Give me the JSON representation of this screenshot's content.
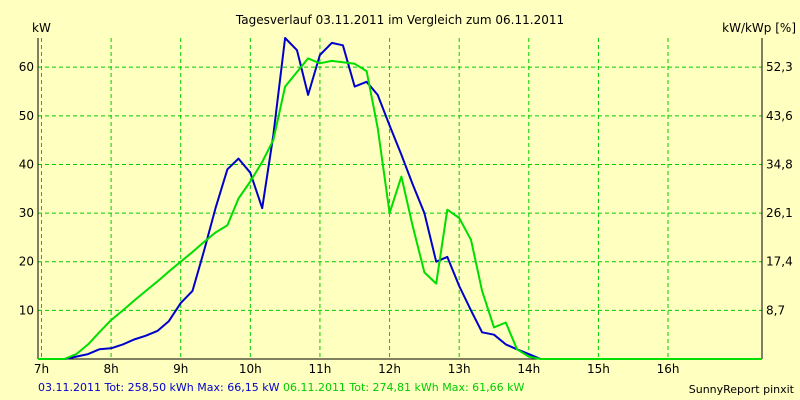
{
  "chart_data": {
    "type": "line",
    "title": "Tagesverlauf 03.11.2011 im Vergleich zum 06.11.2011",
    "ylabel_left": "kW",
    "ylabel_right": "kW/kWp [%]",
    "xlim": [
      6.95,
      17.35
    ],
    "ylim": [
      0,
      66
    ],
    "x_ticks": [
      7,
      8,
      9,
      10,
      11,
      12,
      13,
      14,
      15,
      16
    ],
    "x_tick_labels": [
      "7h",
      "8h",
      "9h",
      "10h",
      "11h",
      "12h",
      "13h",
      "14h",
      "15h",
      "16h"
    ],
    "y_ticks": [
      10,
      20,
      30,
      40,
      50,
      60
    ],
    "y_tick_labels": [
      "10",
      "20",
      "30",
      "40",
      "50",
      "60"
    ],
    "y2_ticks": [
      8.7,
      17.4,
      26.1,
      34.8,
      43.6,
      52.3
    ],
    "y2_tick_labels": [
      "8,7",
      "17,4",
      "26,1",
      "34,8",
      "43,6",
      "52,3"
    ],
    "grid": true,
    "series": [
      {
        "name": "03.11.2011",
        "color": "#0000cc",
        "x": [
          6.95,
          7.33,
          7.5,
          7.67,
          7.83,
          8.0,
          8.17,
          8.33,
          8.5,
          8.67,
          8.83,
          9.0,
          9.17,
          9.33,
          9.5,
          9.67,
          9.83,
          10.0,
          10.17,
          10.33,
          10.5,
          10.67,
          10.83,
          11.0,
          11.17,
          11.33,
          11.5,
          11.67,
          11.83,
          12.0,
          12.17,
          12.33,
          12.5,
          12.67,
          12.83,
          13.0,
          13.17,
          13.33,
          13.5,
          13.67,
          13.83,
          14.0,
          14.17,
          14.33,
          14.5,
          14.67,
          14.83,
          15.0,
          15.17,
          15.33,
          15.5,
          15.67,
          15.83,
          16.0,
          16.17,
          16.33,
          16.5,
          16.67,
          17.35
        ],
        "y": [
          0,
          0,
          0.5,
          1,
          2,
          2.2,
          3,
          4,
          4.8,
          5.8,
          7.8,
          11.5,
          14,
          22,
          31,
          39,
          41.2,
          38.3,
          31,
          46,
          66,
          63.5,
          54.3,
          62.5,
          65,
          64.5,
          56,
          57,
          54.3,
          48,
          42,
          36,
          30,
          20,
          21,
          15,
          10,
          5.5,
          5,
          3,
          2,
          1,
          0,
          0,
          0,
          0,
          0,
          0,
          0,
          0,
          0,
          0,
          0,
          0,
          0,
          0,
          0,
          0,
          0
        ]
      },
      {
        "name": "06.11.2011",
        "color": "#00dd00",
        "x": [
          6.95,
          7.33,
          7.5,
          7.67,
          7.83,
          8.0,
          8.17,
          8.33,
          8.5,
          8.67,
          8.83,
          9.0,
          9.17,
          9.33,
          9.5,
          9.67,
          9.83,
          10.0,
          10.17,
          10.33,
          10.5,
          10.67,
          10.83,
          11.0,
          11.17,
          11.33,
          11.5,
          11.67,
          11.83,
          12.0,
          12.17,
          12.33,
          12.5,
          12.67,
          12.83,
          13.0,
          13.17,
          13.33,
          13.5,
          13.67,
          13.83,
          14.0,
          14.17,
          14.33,
          14.5,
          14.67,
          14.83,
          15.0,
          15.17,
          15.33,
          15.5,
          15.67,
          15.83,
          16.0,
          16.17,
          16.33,
          16.5,
          16.67,
          17.35
        ],
        "y": [
          0,
          0,
          1,
          3,
          5.5,
          8,
          10,
          12,
          14,
          16,
          18,
          20,
          22,
          24,
          26,
          27.5,
          33,
          36.5,
          40.5,
          45,
          56,
          59,
          61.8,
          60.8,
          61.3,
          61,
          60.7,
          59.2,
          47.5,
          30,
          37.5,
          27.5,
          17.8,
          15.5,
          30.7,
          29,
          24.5,
          14,
          6.5,
          7.5,
          2,
          0.5,
          0,
          0,
          0,
          0,
          0,
          0,
          0,
          0,
          0,
          0,
          0,
          0,
          0,
          0,
          0,
          0,
          0
        ]
      }
    ]
  },
  "footer": {
    "series1_label": "03.11.2011 Tot: 258,50 kWh Max: 66,15 kW",
    "series2_label": "06.11.2011 Tot: 274,81 kWh Max: 61,66 kW",
    "credit": "SunnyReport pinxit"
  }
}
